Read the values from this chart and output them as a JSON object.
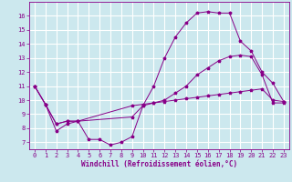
{
  "xlabel": "Windchill (Refroidissement éolien,°C)",
  "background_color": "#cce8ee",
  "grid_color": "#ffffff",
  "line_color": "#880088",
  "xlim": [
    -0.5,
    23.5
  ],
  "ylim": [
    6.5,
    17.0
  ],
  "yticks": [
    7,
    8,
    9,
    10,
    11,
    12,
    13,
    14,
    15,
    16
  ],
  "xticks": [
    0,
    1,
    2,
    3,
    4,
    5,
    6,
    7,
    8,
    9,
    10,
    11,
    12,
    13,
    14,
    15,
    16,
    17,
    18,
    19,
    20,
    21,
    22,
    23
  ],
  "line1_x": [
    0,
    1,
    2,
    3,
    4,
    5,
    6,
    7,
    8,
    9,
    10,
    11,
    12,
    13,
    14,
    15,
    16,
    17,
    18,
    19,
    20,
    21,
    22,
    23
  ],
  "line1_y": [
    11.0,
    9.7,
    7.8,
    8.3,
    8.5,
    7.2,
    7.2,
    6.8,
    7.0,
    7.4,
    9.6,
    11.0,
    13.0,
    14.5,
    15.5,
    16.2,
    16.3,
    16.2,
    16.2,
    14.2,
    13.5,
    12.0,
    11.2,
    9.9
  ],
  "line2_x": [
    0,
    1,
    2,
    3,
    4,
    9,
    10,
    11,
    12,
    13,
    14,
    15,
    16,
    17,
    18,
    19,
    20,
    21,
    22,
    23
  ],
  "line2_y": [
    11.0,
    9.7,
    8.3,
    8.5,
    8.5,
    8.8,
    9.6,
    9.8,
    10.0,
    10.5,
    11.0,
    11.8,
    12.3,
    12.8,
    13.1,
    13.2,
    13.1,
    11.8,
    9.8,
    9.8
  ],
  "line3_x": [
    0,
    1,
    2,
    3,
    4,
    9,
    10,
    11,
    12,
    13,
    14,
    15,
    16,
    17,
    18,
    19,
    20,
    21,
    22,
    23
  ],
  "line3_y": [
    11.0,
    9.7,
    8.3,
    8.5,
    8.5,
    9.6,
    9.7,
    9.8,
    9.9,
    10.0,
    10.1,
    10.2,
    10.3,
    10.4,
    10.5,
    10.6,
    10.7,
    10.8,
    10.0,
    9.9
  ]
}
